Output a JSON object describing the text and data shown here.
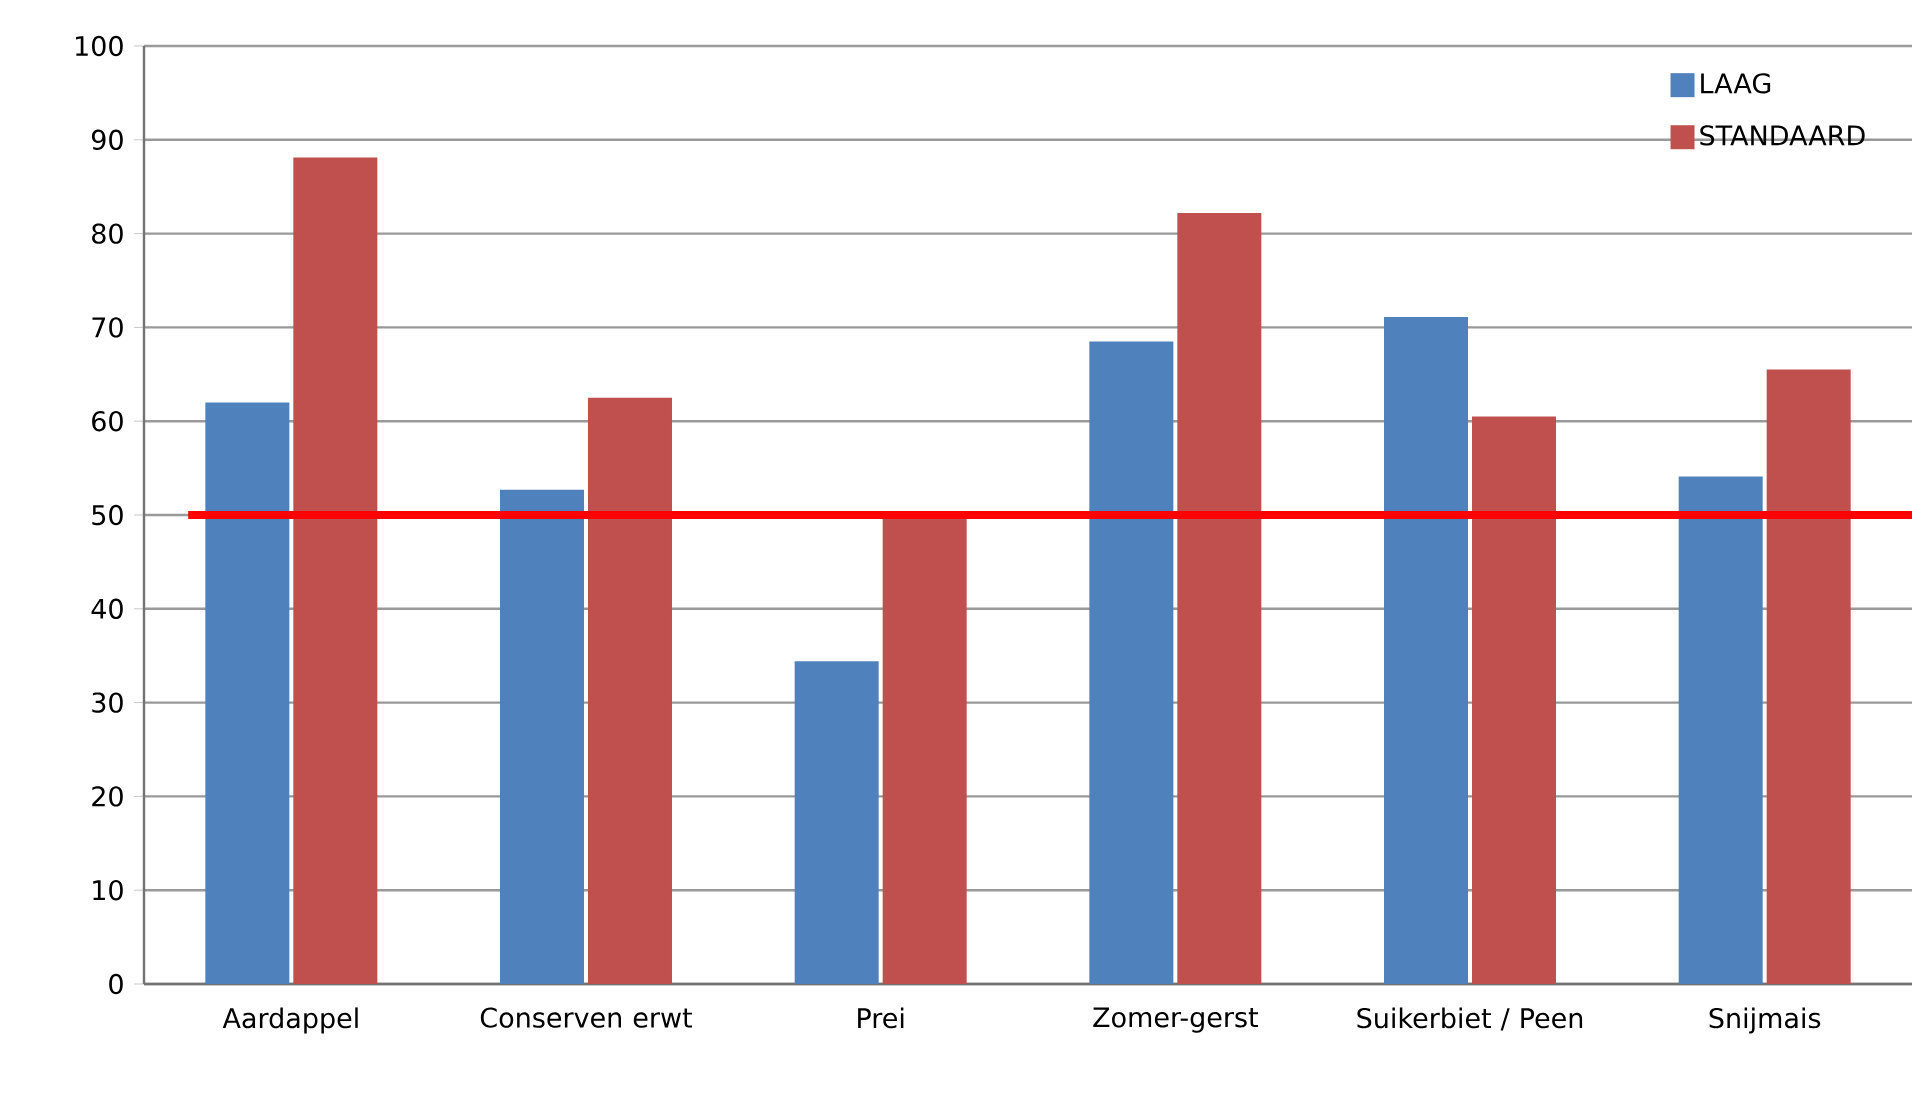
{
  "chart_data": {
    "type": "bar",
    "categories": [
      "Aardappel",
      "Conserven erwt",
      "Prei",
      "Zomer-gerst",
      "Suikerbiet / Peen",
      "Snijmais"
    ],
    "series": [
      {
        "name": "LAAG",
        "color": "#4f81bd",
        "values": [
          62,
          52.7,
          34.4,
          68.5,
          71.1,
          54.1
        ]
      },
      {
        "name": "STANDAARD",
        "color": "#c0504d",
        "values": [
          88.1,
          62.5,
          50,
          82.2,
          60.5,
          65.5
        ]
      }
    ],
    "ylim": [
      0,
      100
    ],
    "yticks": [
      0,
      10,
      20,
      30,
      40,
      50,
      60,
      70,
      80,
      90,
      100
    ],
    "grid": "y",
    "legend": "top right",
    "ref_lines": [
      {
        "axis": "y",
        "value": 50,
        "color": "#ff0000"
      }
    ]
  }
}
